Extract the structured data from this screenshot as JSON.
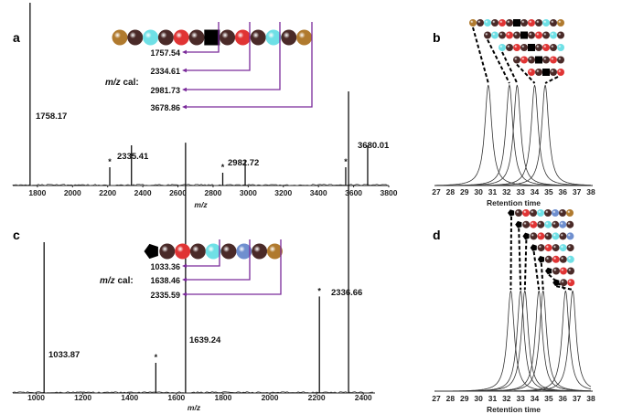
{
  "colors": {
    "bronze": "#b07a2e",
    "dark": "#4a2a28",
    "cyan": "#6fe0e6",
    "red": "#e03434",
    "blue": "#6f8fcf",
    "black": "#000000",
    "purple": "#7a2a9a"
  },
  "chart_data": [
    {
      "panel": "a",
      "type": "line",
      "xlabel": "m/z",
      "xlim": [
        1660,
        3800
      ],
      "xticks": [
        "1800",
        "2000",
        "2200",
        "2400",
        "2600",
        "2800",
        "3000",
        "3200",
        "3400",
        "3600",
        "3800"
      ],
      "peaks": [
        {
          "x": 1758.17,
          "h": 1.0,
          "label": "1758.17"
        },
        {
          "x": 2335.41,
          "h": 0.22,
          "label": "2335.41"
        },
        {
          "x": 2982.72,
          "h": 0.14,
          "label": "2982.72"
        },
        {
          "x": 3680.01,
          "h": 0.22,
          "label": "3680.01"
        },
        {
          "x": 2212,
          "h": 0.1,
          "label": "*"
        },
        {
          "x": 2855,
          "h": 0.07,
          "label": "*"
        },
        {
          "x": 3555,
          "h": 0.1,
          "label": "*"
        }
      ],
      "sequence": [
        "bronze",
        "dark",
        "cyan",
        "dark",
        "red",
        "dark",
        "square",
        "dark",
        "red",
        "dark",
        "cyan",
        "dark",
        "bronze"
      ],
      "cal_label": "m/z cal:",
      "cal_values": [
        "1757.54",
        "2334.61",
        "2981.73",
        "3678.86"
      ]
    },
    {
      "panel": "b",
      "type": "line",
      "xlabel": "Retention time",
      "xlim": [
        27,
        38
      ],
      "xticks": [
        "27",
        "28",
        "29",
        "30",
        "31",
        "32",
        "33",
        "34",
        "35",
        "36",
        "37",
        "38"
      ],
      "peaks": [
        30.7,
        32.2,
        32.75,
        34.0,
        34.75
      ]
    },
    {
      "panel": "c",
      "type": "line",
      "xlabel": "m/z",
      "xlim": [
        900,
        2450
      ],
      "xticks": [
        "1000",
        "1200",
        "1400",
        "1600",
        "1800",
        "2000",
        "2200",
        "2400"
      ],
      "peaks": [
        {
          "x": 1033.87,
          "h": 0.5,
          "label": "1033.87"
        },
        {
          "x": 1639.24,
          "h": 0.83,
          "label": "1639.24"
        },
        {
          "x": 2336.66,
          "h": 1.0,
          "label": "2336.66"
        },
        {
          "x": 1512,
          "h": 0.1,
          "label": "*"
        },
        {
          "x": 2212,
          "h": 0.32,
          "label": "*"
        }
      ],
      "sequence": [
        "pentagon",
        "dark",
        "red",
        "dark",
        "cyan",
        "dark",
        "blue",
        "dark",
        "bronze"
      ],
      "cal_label": "m/z cal:",
      "cal_values": [
        "1033.36",
        "1638.46",
        "2335.59"
      ]
    },
    {
      "panel": "d",
      "type": "line",
      "xlabel": "Retention time",
      "xlim": [
        27,
        38
      ],
      "xticks": [
        "27",
        "28",
        "29",
        "30",
        "31",
        "32",
        "33",
        "34",
        "35",
        "36",
        "37",
        "38"
      ],
      "peaks": [
        32.3,
        33.0,
        33.3,
        34.3,
        34.6,
        36.2,
        36.7
      ]
    }
  ],
  "panels": [
    "a",
    "b",
    "c",
    "d"
  ],
  "cal_label_italic": "m/z",
  "cal_label_rest": " cal:"
}
